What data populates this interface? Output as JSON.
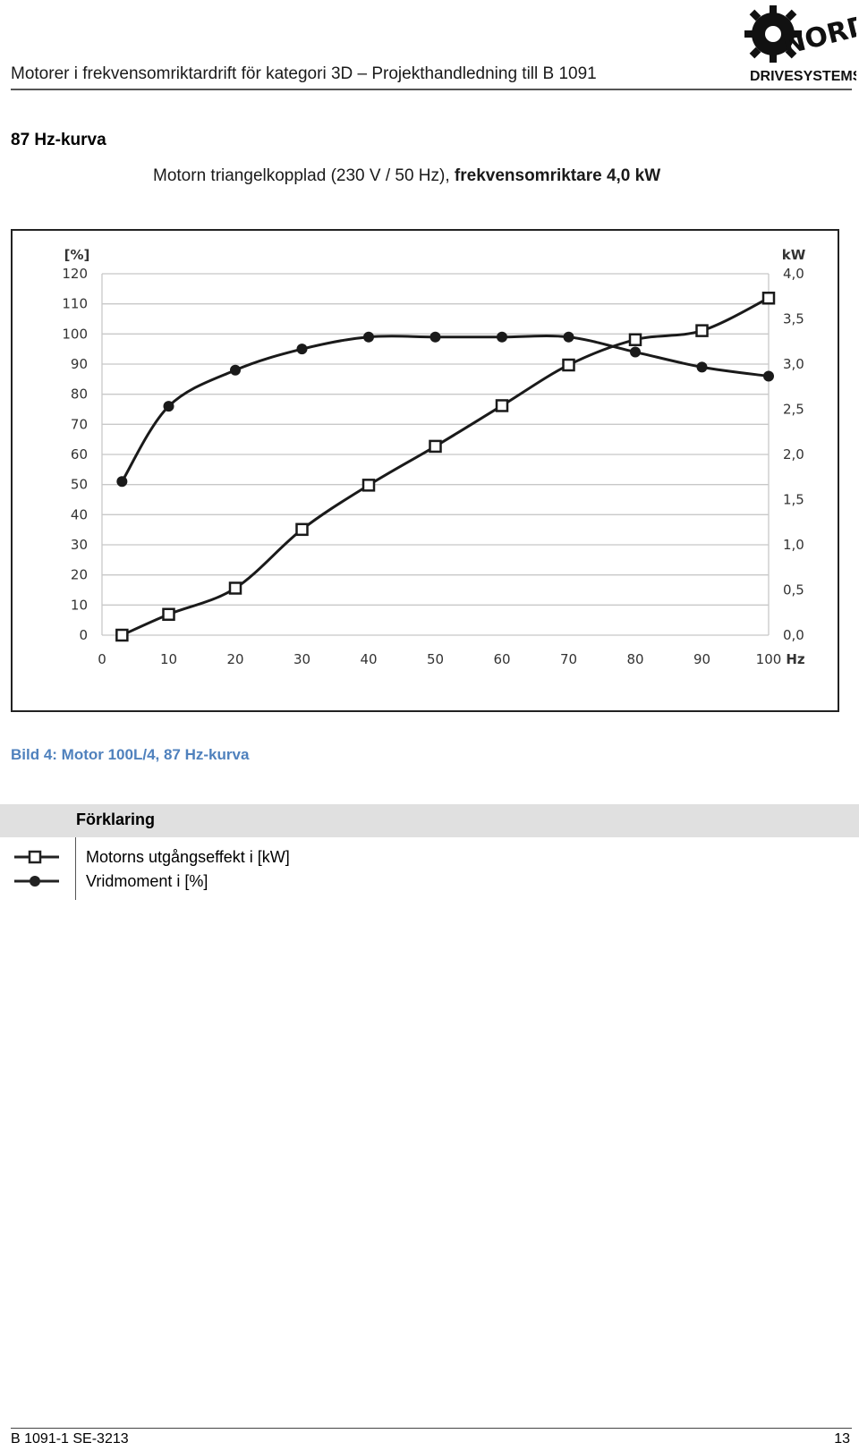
{
  "header": {
    "title": "Motorer i frekvensomriktardrift för kategori 3D – Projekthandledning till B 1091",
    "logo_text_top": "NORD",
    "logo_text_bottom": "DRIVESYSTEMS"
  },
  "section": {
    "heading": "87 Hz-kurva",
    "caption_plain": "Motorn triangelkopplad (230 V / 50 Hz), ",
    "caption_bold": "frekvensomriktare 4,0 kW"
  },
  "chart_data": {
    "type": "line",
    "x_label": "Hz",
    "x_ticks": [
      "0",
      "10",
      "20",
      "30",
      "40",
      "50",
      "60",
      "70",
      "80",
      "90",
      "100"
    ],
    "xlim": [
      0,
      100
    ],
    "y_left_label": "[%]",
    "y_left_ticks": [
      "0",
      "10",
      "20",
      "30",
      "40",
      "50",
      "60",
      "70",
      "80",
      "90",
      "100",
      "110",
      "120"
    ],
    "y_left_lim": [
      0,
      120
    ],
    "y_right_label": "kW",
    "y_right_ticks": [
      "0,0",
      "0,5",
      "1,0",
      "1,5",
      "2,0",
      "2,5",
      "3,0",
      "3,5",
      "4,0"
    ],
    "y_right_lim": [
      0,
      4
    ],
    "grid": true,
    "series": [
      {
        "name": "Motorns utgångseffekt i [kW]",
        "marker": "square",
        "axis": "right",
        "x": [
          3,
          10,
          20,
          30,
          40,
          50,
          60,
          70,
          80,
          90,
          100
        ],
        "values": [
          0.0,
          0.23,
          0.52,
          1.17,
          1.66,
          2.09,
          2.54,
          2.99,
          3.27,
          3.37,
          3.73
        ]
      },
      {
        "name": "Vridmoment i [%]",
        "marker": "circle",
        "axis": "left",
        "x": [
          3,
          10,
          20,
          30,
          40,
          50,
          60,
          70,
          80,
          90,
          100
        ],
        "values": [
          51,
          76,
          88,
          95,
          99,
          99,
          99,
          99,
          94,
          89,
          86
        ]
      }
    ]
  },
  "figure_caption": "Bild 4: Motor 100L/4, 87 Hz-kurva",
  "legend": {
    "heading": "Förklaring",
    "items": [
      {
        "icon": "square-marker-line-icon",
        "label": "Motorns utgångseffekt i [kW]"
      },
      {
        "icon": "circle-marker-line-icon",
        "label": "Vridmoment i [%]"
      }
    ]
  },
  "footer": {
    "doc_id": "B 1091-1 SE-3213",
    "page": "13"
  }
}
